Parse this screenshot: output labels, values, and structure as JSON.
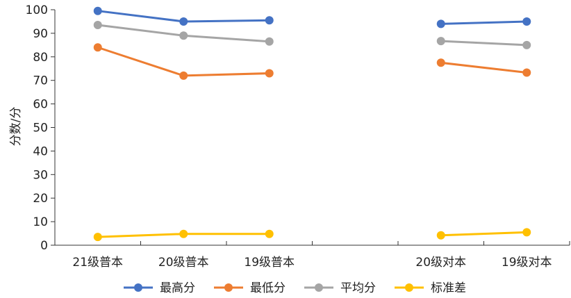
{
  "chart_data": {
    "type": "line",
    "ylabel": "分数/分",
    "ylim": [
      0,
      100
    ],
    "yticks": [
      0,
      10,
      20,
      30,
      40,
      50,
      60,
      70,
      80,
      90,
      100
    ],
    "categories": [
      "21级普本",
      "20级普本",
      "19级普本",
      "",
      "20级对本",
      "19级对本"
    ],
    "grid": false,
    "legend_position": "bottom",
    "series": [
      {
        "name": "最高分",
        "color": "#4472c4",
        "values": [
          99.5,
          95,
          95.5,
          null,
          94,
          95
        ]
      },
      {
        "name": "最低分",
        "color": "#ed7d31",
        "values": [
          84,
          72,
          73,
          null,
          77.5,
          73.3
        ]
      },
      {
        "name": "平均分",
        "color": "#a5a5a5",
        "values": [
          93.5,
          89,
          86.5,
          null,
          86.7,
          85
        ]
      },
      {
        "name": "标准差",
        "color": "#ffc000",
        "values": [
          3.5,
          4.8,
          4.8,
          null,
          4.2,
          5.5
        ]
      }
    ]
  }
}
